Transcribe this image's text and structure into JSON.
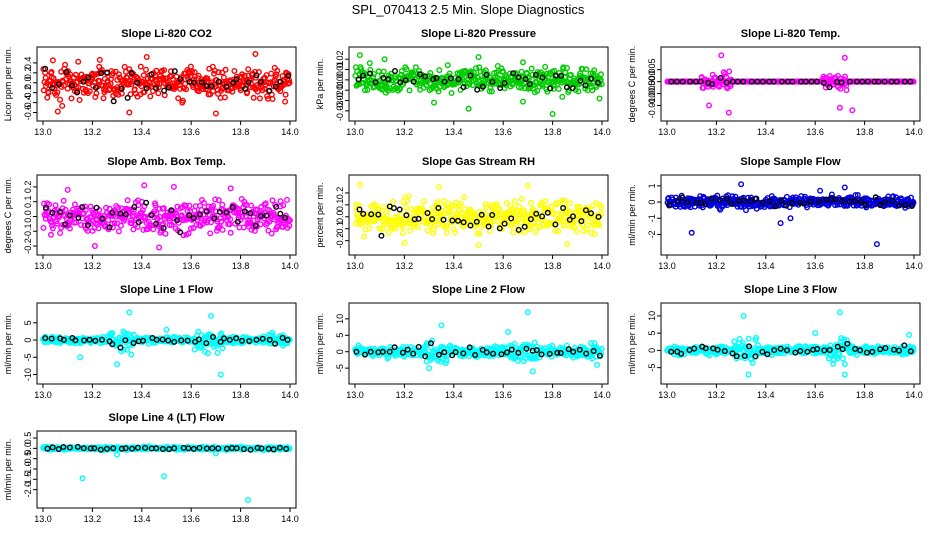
{
  "figure": {
    "title": "SPL_070413  2.5 Min. Slope Diagnostics"
  },
  "chart_data": [
    {
      "type": "scatter",
      "title": "Slope Li-820 CO2",
      "ylabel": "Licor ppm per min.",
      "xlim": [
        13.0,
        14.0
      ],
      "ylim": [
        -0.65,
        0.6
      ],
      "xticks": [
        "13.0",
        "13.2",
        "13.4",
        "13.6",
        "13.8",
        "14.0"
      ],
      "yticks": [
        -0.6,
        -0.4,
        -0.2,
        0.0,
        0.2,
        0.4
      ],
      "ytick_labels": [
        "-0.6",
        "-0.4",
        "-0.2",
        "0.0",
        "0.2",
        "0.4"
      ],
      "color": "#ff0000",
      "spread": 0.22,
      "outliers": [
        [
          13.04,
          0.45
        ],
        [
          13.23,
          0.46
        ],
        [
          13.42,
          0.52
        ],
        [
          13.86,
          0.58
        ],
        [
          13.06,
          -0.58
        ],
        [
          13.35,
          -0.6
        ],
        [
          13.7,
          -0.62
        ],
        [
          13.98,
          -0.38
        ]
      ]
    },
    {
      "type": "scatter",
      "title": "Slope Li-820 Pressure",
      "ylabel": "kPa per min.",
      "xlim": [
        13.0,
        14.0
      ],
      "ylim": [
        -0.034,
        0.026
      ],
      "xticks": [
        "13.0",
        "13.2",
        "13.4",
        "13.6",
        "13.8",
        "14.0"
      ],
      "yticks": [
        -0.03,
        -0.02,
        -0.01,
        0.0,
        0.01,
        0.02
      ],
      "ytick_labels": [
        "-0.03",
        "-0.02",
        "-0.01",
        "0.00",
        "0.01",
        "0.02"
      ],
      "color": "#00cc00",
      "spread": 0.008,
      "outliers": [
        [
          13.02,
          0.024
        ],
        [
          13.5,
          0.022
        ],
        [
          13.32,
          -0.022
        ],
        [
          13.68,
          -0.021
        ],
        [
          13.46,
          -0.028
        ],
        [
          13.8,
          -0.033
        ],
        [
          13.99,
          -0.018
        ],
        [
          13.12,
          0.02
        ]
      ]
    },
    {
      "type": "scatter",
      "title": "Slope Li-820 Temp.",
      "ylabel": "degrees C per min.",
      "xlim": [
        13.0,
        14.0
      ],
      "ylim": [
        -0.014,
        0.012
      ],
      "xticks": [
        "13.0",
        "13.2",
        "13.4",
        "13.6",
        "13.8",
        "14.0"
      ],
      "yticks": [
        -0.01,
        -0.005,
        0.0,
        0.005
      ],
      "ytick_labels": [
        "-0.010",
        "-0.005",
        "0.000",
        "0.005"
      ],
      "color": "#ff00ff",
      "spread": 0.0,
      "bursts": [
        [
          13.2,
          0.06,
          0.004
        ],
        [
          13.68,
          0.05,
          0.004
        ]
      ],
      "outliers": [
        [
          13.22,
          0.011
        ],
        [
          13.25,
          -0.013
        ],
        [
          13.72,
          0.01
        ],
        [
          13.75,
          -0.012
        ],
        [
          13.17,
          -0.01
        ],
        [
          13.7,
          -0.011
        ]
      ]
    },
    {
      "type": "scatter",
      "title": "Slope Amb. Box Temp.",
      "ylabel": "degrees C per min.",
      "xlim": [
        13.0,
        14.0
      ],
      "ylim": [
        -0.22,
        0.24
      ],
      "xticks": [
        "13.0",
        "13.2",
        "13.4",
        "13.6",
        "13.8",
        "14.0"
      ],
      "yticks": [
        -0.2,
        -0.1,
        0.0,
        0.1,
        0.2
      ],
      "ytick_labels": [
        "-0.2",
        "-0.1",
        "0.0",
        "0.1",
        "0.2"
      ],
      "color": "#ff00ff",
      "spread": 0.075,
      "outliers": [
        [
          13.41,
          0.21
        ],
        [
          13.53,
          0.2
        ],
        [
          13.21,
          -0.2
        ],
        [
          13.47,
          -0.21
        ],
        [
          13.76,
          0.19
        ],
        [
          13.1,
          0.18
        ]
      ]
    },
    {
      "type": "scatter",
      "title": "Slope Gas Stream RH",
      "ylabel": "percent per min.",
      "xlim": [
        13.0,
        14.0
      ],
      "ylim": [
        -0.27,
        0.3
      ],
      "xticks": [
        "13.0",
        "13.2",
        "13.4",
        "13.6",
        "13.8",
        "14.0"
      ],
      "yticks": [
        -0.2,
        -0.1,
        0.0,
        0.1,
        0.2
      ],
      "ytick_labels": [
        "-0.2",
        "-0.1",
        "0.0",
        "0.1",
        "0.2"
      ],
      "color": "#ffff00",
      "spread": 0.1,
      "outliers": [
        [
          13.02,
          0.27
        ],
        [
          13.34,
          0.25
        ],
        [
          13.7,
          0.26
        ],
        [
          13.5,
          -0.24
        ],
        [
          13.2,
          -0.22
        ],
        [
          13.86,
          -0.23
        ]
      ]
    },
    {
      "type": "scatter",
      "title": "Slope Sample Flow",
      "ylabel": "ml/min per min.",
      "xlim": [
        13.0,
        14.0
      ],
      "ylim": [
        -2.9,
        1.3
      ],
      "xticks": [
        "13.0",
        "13.2",
        "13.4",
        "13.6",
        "13.8",
        "14.0"
      ],
      "yticks": [
        -2,
        -1,
        0,
        1
      ],
      "ytick_labels": [
        "-2",
        "-1",
        "0",
        "1"
      ],
      "color": "#0000dd",
      "spread": 0.25,
      "outliers": [
        [
          13.3,
          1.1
        ],
        [
          13.1,
          -1.9
        ],
        [
          13.5,
          -1.0
        ],
        [
          13.72,
          0.9
        ],
        [
          13.85,
          -2.6
        ],
        [
          13.46,
          -1.3
        ],
        [
          13.62,
          0.7
        ]
      ]
    },
    {
      "type": "scatter",
      "title": "Slope Line 1 Flow",
      "ylabel": "ml/min per min.",
      "xlim": [
        13.0,
        14.0
      ],
      "ylim": [
        -11,
        9
      ],
      "xticks": [
        "13.0",
        "13.2",
        "13.4",
        "13.6",
        "13.8",
        "14.0"
      ],
      "yticks": [
        -10,
        -5,
        0,
        5
      ],
      "ytick_labels": [
        "-10",
        "-5",
        "0",
        "5"
      ],
      "color": "#00ffff",
      "spread": 0.6,
      "bursts": [
        [
          13.32,
          0.05,
          4.5
        ],
        [
          13.67,
          0.06,
          4.0
        ],
        [
          13.95,
          0.04,
          2.0
        ]
      ],
      "outliers": [
        [
          13.35,
          8
        ],
        [
          13.3,
          -7
        ],
        [
          13.68,
          7
        ],
        [
          13.72,
          -10
        ],
        [
          13.15,
          -5
        ],
        [
          13.5,
          3
        ]
      ]
    },
    {
      "type": "scatter",
      "title": "Slope Line 2 Flow",
      "ylabel": "ml/min per min.",
      "xlim": [
        13.0,
        14.0
      ],
      "ylim": [
        -8,
        13
      ],
      "xticks": [
        "13.0",
        "13.2",
        "13.4",
        "13.6",
        "13.8",
        "14.0"
      ],
      "yticks": [
        -5,
        0,
        5,
        10
      ],
      "ytick_labels": [
        "-5",
        "0",
        "5",
        "10"
      ],
      "color": "#00ffff",
      "spread": 1.0,
      "bursts": [
        [
          13.33,
          0.05,
          3.5
        ],
        [
          13.68,
          0.06,
          3.5
        ],
        [
          13.95,
          0.04,
          2.0
        ]
      ],
      "outliers": [
        [
          13.7,
          12
        ],
        [
          13.35,
          8
        ],
        [
          13.3,
          -5
        ],
        [
          13.72,
          -6
        ],
        [
          13.62,
          6
        ],
        [
          13.98,
          -4
        ]
      ]
    },
    {
      "type": "scatter",
      "title": "Slope Line 3 Flow",
      "ylabel": "ml/min per min.",
      "xlim": [
        13.0,
        14.0
      ],
      "ylim": [
        -8,
        12
      ],
      "xticks": [
        "13.0",
        "13.2",
        "13.4",
        "13.6",
        "13.8",
        "14.0"
      ],
      "yticks": [
        -5,
        0,
        5,
        10
      ],
      "ytick_labels": [
        "-5",
        "0",
        "5",
        "10"
      ],
      "color": "#00ffff",
      "spread": 0.8,
      "bursts": [
        [
          13.32,
          0.05,
          4.0
        ],
        [
          13.69,
          0.05,
          4.0
        ],
        [
          13.97,
          0.03,
          2.0
        ]
      ],
      "outliers": [
        [
          13.31,
          10
        ],
        [
          13.7,
          11
        ],
        [
          13.33,
          -7
        ],
        [
          13.72,
          -7
        ],
        [
          13.98,
          4.5
        ],
        [
          13.6,
          5
        ]
      ]
    },
    {
      "type": "scatter",
      "title": "Slope Line 4 (LT) Flow",
      "ylabel": "ml/min per min.",
      "xlim": [
        13.0,
        14.0
      ],
      "ylim": [
        -2.6,
        0.55
      ],
      "xticks": [
        "13.0",
        "13.2",
        "13.4",
        "13.6",
        "13.8",
        "14.0"
      ],
      "yticks": [
        -2.0,
        -1.5,
        -1.0,
        -0.5,
        0.0,
        0.5
      ],
      "ytick_labels": [
        "-2.0",
        "-1.5",
        "-1.0",
        "-0.5",
        "0.0",
        "0.5"
      ],
      "color": "#00ffff",
      "spread": 0.05,
      "outliers": [
        [
          13.16,
          -1.45
        ],
        [
          13.49,
          -1.35
        ],
        [
          13.83,
          -2.5
        ],
        [
          13.3,
          -0.3
        ],
        [
          13.7,
          -0.25
        ]
      ]
    }
  ]
}
